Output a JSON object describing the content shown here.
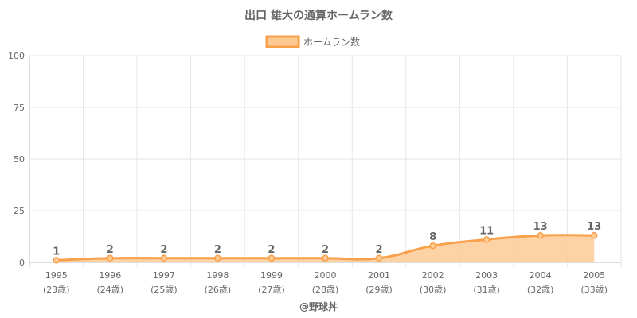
{
  "chart_data": {
    "type": "area",
    "title": "出口 雄大の通算ホームラン数",
    "series": [
      {
        "name": "ホームラン数",
        "values": [
          1,
          2,
          2,
          2,
          2,
          2,
          2,
          8,
          11,
          13,
          13
        ]
      }
    ],
    "categories": [
      "1995",
      "1996",
      "1997",
      "1998",
      "1999",
      "2000",
      "2001",
      "2002",
      "2003",
      "2004",
      "2005"
    ],
    "sublabels": [
      "(23歳)",
      "(24歳)",
      "(25歳)",
      "(26歳)",
      "(27歳)",
      "(28歳)",
      "(29歳)",
      "(30歳)",
      "(31歳)",
      "(32歳)",
      "(33歳)"
    ],
    "ylim": [
      0,
      100
    ],
    "yticks": [
      0,
      25,
      50,
      75,
      100
    ],
    "grid": true,
    "legend_position": "top",
    "line_color": "#f9a04a",
    "fill_color": "#fdca94",
    "data_labels": true
  },
  "credit": "@野球丼"
}
